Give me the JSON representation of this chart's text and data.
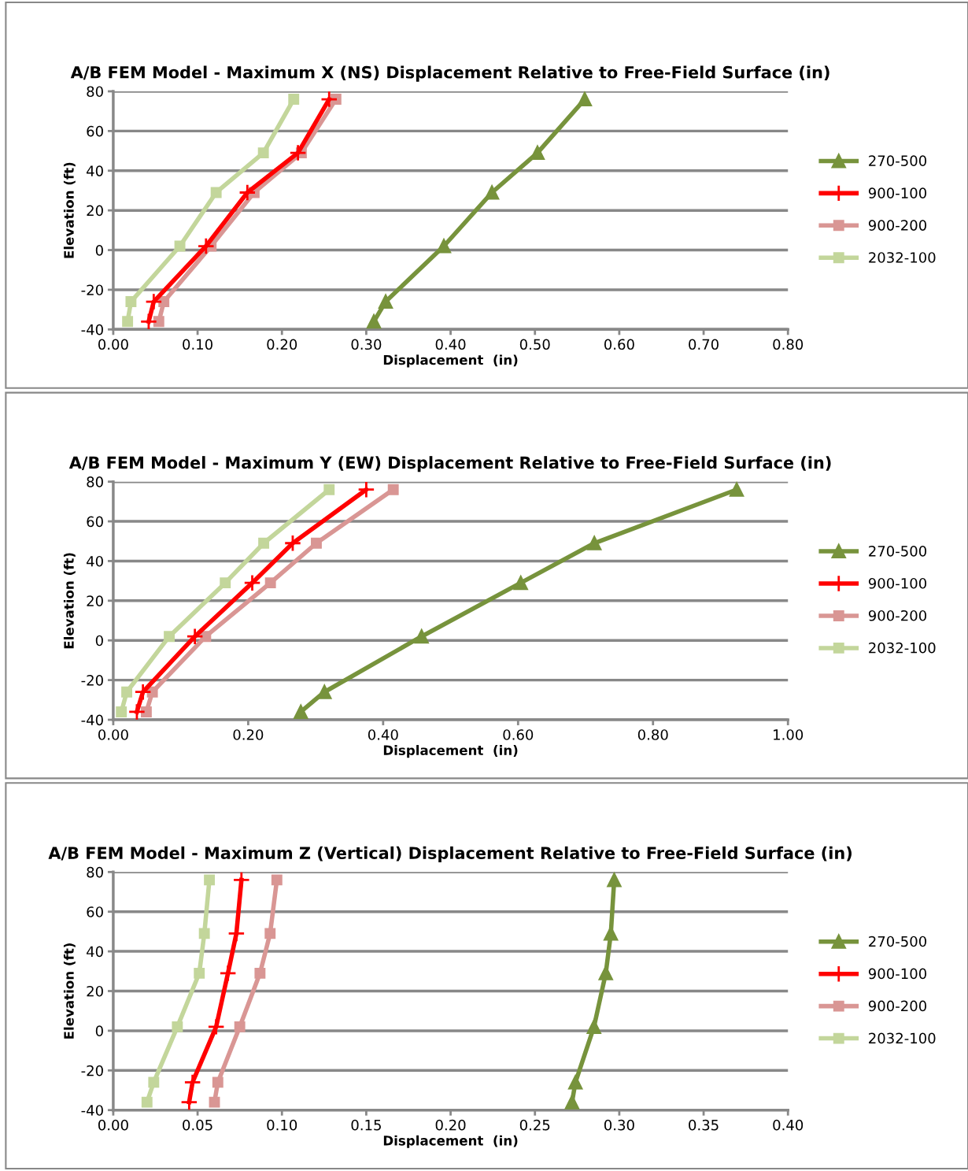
{
  "chart_data": [
    {
      "type": "line",
      "title": "A/B FEM Model - Maximum X (NS) Displacement Relative to Free-Field Surface (in)",
      "xlabel": "Displacement  (in)",
      "ylabel": "Elevation (ft)",
      "xlim": [
        0,
        0.8
      ],
      "xticks": [
        {
          "value": 0,
          "label": "0.00"
        },
        {
          "value": 0.1,
          "label": "0.10"
        },
        {
          "value": 0.2,
          "label": "0.20"
        },
        {
          "value": 0.3,
          "label": "0.30"
        },
        {
          "value": 0.4,
          "label": "0.40"
        },
        {
          "value": 0.5,
          "label": "0.50"
        },
        {
          "value": 0.6,
          "label": "0.60"
        },
        {
          "value": 0.7,
          "label": "0.70"
        },
        {
          "value": 0.8,
          "label": "0.80"
        }
      ],
      "ylim": [
        -40,
        80
      ],
      "yticks": [
        -40,
        -20,
        0,
        20,
        40,
        60,
        80
      ],
      "grid": "y",
      "legend": "right",
      "series": [
        {
          "name": "270-500",
          "color": "#77933c",
          "marker": "triangle",
          "x": [
            0.559,
            0.503,
            0.449,
            0.392,
            0.323,
            0.309
          ],
          "values": [
            76,
            49,
            29,
            2,
            -26,
            -36
          ]
        },
        {
          "name": "900-100",
          "color": "#ff0000",
          "marker": "cross",
          "x": [
            0.256,
            0.219,
            0.159,
            0.11,
            0.048,
            0.042
          ],
          "values": [
            76,
            49,
            29,
            2,
            -26,
            -36
          ]
        },
        {
          "name": "900-200",
          "color": "#d99694",
          "marker": "square",
          "x": [
            0.264,
            0.223,
            0.167,
            0.116,
            0.06,
            0.054
          ],
          "values": [
            76,
            49,
            29,
            2,
            -26,
            -36
          ]
        },
        {
          "name": "2032-100",
          "color": "#c3d69b",
          "marker": "square",
          "x": [
            0.214,
            0.178,
            0.122,
            0.079,
            0.021,
            0.017
          ],
          "values": [
            76,
            49,
            29,
            2,
            -26,
            -36
          ]
        }
      ]
    },
    {
      "type": "line",
      "title": "A/B FEM Model - Maximum Y (EW) Displacement Relative to Free-Field Surface (in)",
      "xlabel": "Displacement  (in)",
      "ylabel": "Elevation (ft)",
      "xlim": [
        0,
        1.0
      ],
      "xticks": [
        {
          "value": 0,
          "label": "0.00"
        },
        {
          "value": 0.2,
          "label": "0.20"
        },
        {
          "value": 0.4,
          "label": "0.40"
        },
        {
          "value": 0.6,
          "label": "0.60"
        },
        {
          "value": 0.8,
          "label": "0.80"
        },
        {
          "value": 1.0,
          "label": "1.00"
        }
      ],
      "ylim": [
        -40,
        80
      ],
      "yticks": [
        -40,
        -20,
        0,
        20,
        40,
        60,
        80
      ],
      "grid": "y",
      "legend": "right",
      "series": [
        {
          "name": "270-500",
          "color": "#77933c",
          "marker": "triangle",
          "x": [
            0.924,
            0.713,
            0.604,
            0.457,
            0.313,
            0.278
          ],
          "values": [
            76,
            49,
            29,
            2,
            -26,
            -36
          ]
        },
        {
          "name": "900-100",
          "color": "#ff0000",
          "marker": "cross",
          "x": [
            0.375,
            0.266,
            0.206,
            0.121,
            0.044,
            0.035
          ],
          "values": [
            76,
            49,
            29,
            2,
            -26,
            -36
          ]
        },
        {
          "name": "900-200",
          "color": "#d99694",
          "marker": "square",
          "x": [
            0.415,
            0.301,
            0.233,
            0.137,
            0.058,
            0.049
          ],
          "values": [
            76,
            49,
            29,
            2,
            -26,
            -36
          ]
        },
        {
          "name": "2032-100",
          "color": "#c3d69b",
          "marker": "square",
          "x": [
            0.32,
            0.223,
            0.166,
            0.083,
            0.02,
            0.012
          ],
          "values": [
            76,
            49,
            29,
            2,
            -26,
            -36
          ]
        }
      ]
    },
    {
      "type": "line",
      "title": "A/B FEM Model - Maximum Z (Vertical) Displacement Relative to Free-Field Surface (in)",
      "xlabel": "Displacement  (in)",
      "ylabel": "Elevation (ft)",
      "xlim": [
        0,
        0.4
      ],
      "xticks": [
        {
          "value": 0,
          "label": "0.00"
        },
        {
          "value": 0.05,
          "label": "0.05"
        },
        {
          "value": 0.1,
          "label": "0.10"
        },
        {
          "value": 0.15,
          "label": "0.15"
        },
        {
          "value": 0.2,
          "label": "0.20"
        },
        {
          "value": 0.25,
          "label": "0.25"
        },
        {
          "value": 0.3,
          "label": "0.30"
        },
        {
          "value": 0.35,
          "label": "0.35"
        },
        {
          "value": 0.4,
          "label": "0.40"
        }
      ],
      "ylim": [
        -40,
        80
      ],
      "yticks": [
        -40,
        -20,
        0,
        20,
        40,
        60,
        80
      ],
      "grid": "y",
      "legend": "right",
      "series": [
        {
          "name": "270-500",
          "color": "#77933c",
          "marker": "triangle",
          "x": [
            0.297,
            0.295,
            0.292,
            0.285,
            0.274,
            0.272
          ],
          "values": [
            76,
            49,
            29,
            2,
            -26,
            -36
          ]
        },
        {
          "name": "900-100",
          "color": "#ff0000",
          "marker": "cross",
          "x": [
            0.076,
            0.073,
            0.068,
            0.061,
            0.047,
            0.045
          ],
          "values": [
            76,
            49,
            29,
            2,
            -26,
            -36
          ]
        },
        {
          "name": "900-200",
          "color": "#d99694",
          "marker": "square",
          "x": [
            0.097,
            0.093,
            0.087,
            0.075,
            0.062,
            0.06
          ],
          "values": [
            76,
            49,
            29,
            2,
            -26,
            -36
          ]
        },
        {
          "name": "2032-100",
          "color": "#c3d69b",
          "marker": "square",
          "x": [
            0.057,
            0.054,
            0.051,
            0.038,
            0.024,
            0.02
          ],
          "values": [
            76,
            49,
            29,
            2,
            -26,
            -36
          ]
        }
      ]
    }
  ]
}
